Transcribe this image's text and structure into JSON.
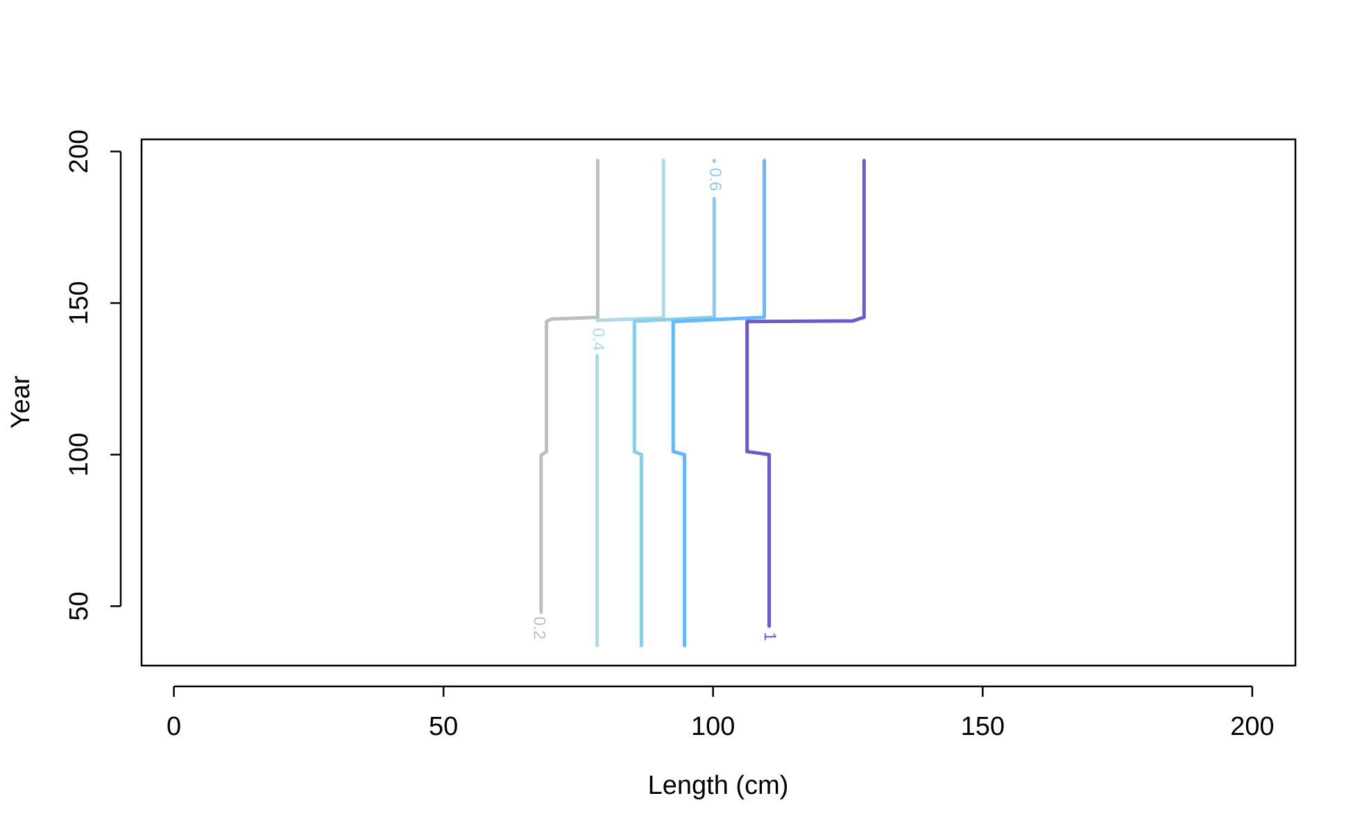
{
  "chart_data": {
    "type": "contour",
    "xlabel": "Length (cm)",
    "ylabel": "Year",
    "xlim": [
      -6,
      208
    ],
    "ylim": [
      30.4,
      204
    ],
    "xticks": [
      0,
      50,
      100,
      150,
      200
    ],
    "yticks": [
      50,
      100,
      150,
      200
    ],
    "series": [
      {
        "level": 0.2,
        "color": "#bebebe",
        "label_at": [
          67.6,
          42.8
        ],
        "x": [
          68.1,
          68.1,
          69.1,
          69.1,
          70,
          78.6,
          78.6
        ],
        "y": [
          48,
          99.8,
          101,
          143.9,
          144.7,
          145.3,
          197
        ]
      },
      {
        "level": 0.4,
        "color": "#add8e6",
        "label_at": [
          78.5,
          138
        ],
        "x": [
          78.5,
          78.5,
          null,
          78.5,
          90.8,
          90.8
        ],
        "y": [
          37,
          132.6,
          null,
          144.3,
          145.1,
          197
        ]
      },
      {
        "level": 0.6,
        "color": "#87ceeb",
        "label_at": [
          100.2,
          190.8
        ],
        "x": [
          86.7,
          86.7,
          85.4,
          85.4,
          100.2,
          100.2,
          null,
          100.2,
          100.2
        ],
        "y": [
          37,
          100,
          101,
          144,
          145.3,
          184.5,
          null,
          196.8,
          197
        ]
      },
      {
        "color": "#63b8ff",
        "x": [
          94.7,
          94.7,
          92.6,
          92.6,
          109.5,
          109.5
        ],
        "y": [
          37,
          100,
          101,
          143.9,
          145.3,
          197
        ]
      },
      {
        "level": 1,
        "color": "#6a5acd",
        "label_at": [
          110.4,
          40
        ],
        "x": [
          110.4,
          110.4,
          106.3,
          106.3,
          125.9,
          128,
          128
        ],
        "y": [
          43.4,
          100,
          101,
          143.9,
          144.1,
          145.3,
          197
        ]
      }
    ]
  }
}
